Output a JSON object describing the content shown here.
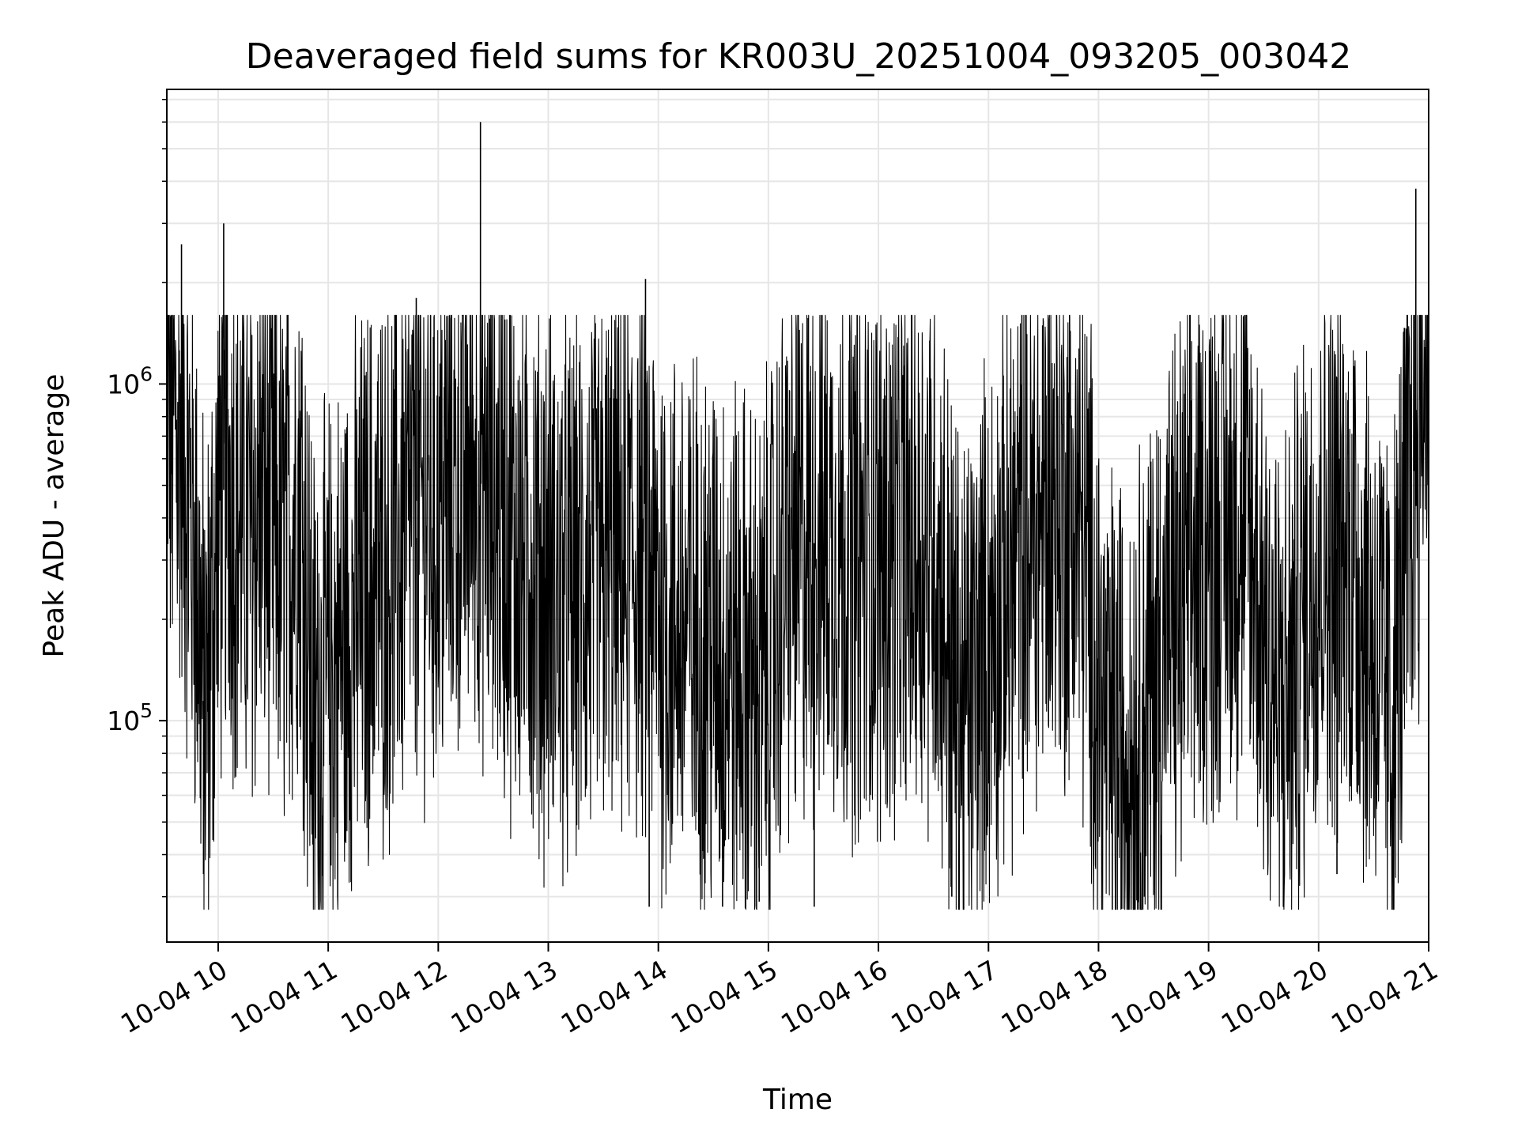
{
  "chart_data": {
    "type": "line",
    "title": "Deaveraged field sums for KR003U_20251004_093205_003042",
    "xlabel": "Time",
    "ylabel": "Peak ADU - average",
    "x_axis": {
      "type": "time",
      "range": [
        "2025-10-04 09:32",
        "2025-10-04 21:00"
      ],
      "ticks": [
        "10-04 10",
        "10-04 11",
        "10-04 12",
        "10-04 13",
        "10-04 14",
        "10-04 15",
        "10-04 16",
        "10-04 17",
        "10-04 18",
        "10-04 19",
        "10-04 20",
        "10-04 21"
      ]
    },
    "y_axis": {
      "scale": "log",
      "range": [
        22000,
        7500000
      ],
      "ticks": [
        {
          "base": "10",
          "exp": "5"
        },
        {
          "base": "10",
          "exp": "6"
        }
      ]
    },
    "grid": true,
    "legend": "none",
    "line_color": "#000000",
    "series": [
      {
        "time": [
          "2025-10-04 09:32",
          "2025-10-04 09:40",
          "2025-10-04 09:48",
          "2025-10-04 09:53",
          "2025-10-04 10:00",
          "2025-10-04 10:05",
          "2025-10-04 10:15",
          "2025-10-04 10:25",
          "2025-10-04 10:35",
          "2025-10-04 10:45",
          "2025-10-04 10:52",
          "2025-10-04 11:05",
          "2025-10-04 11:20",
          "2025-10-04 11:35",
          "2025-10-04 11:48",
          "2025-10-04 12:00",
          "2025-10-04 12:20",
          "2025-10-04 12:40",
          "2025-10-04 12:55",
          "2025-10-04 13:10",
          "2025-10-04 13:30",
          "2025-10-04 13:50",
          "2025-10-04 14:05",
          "2025-10-04 14:25",
          "2025-10-04 14:45",
          "2025-10-04 14:55",
          "2025-10-04 15:10",
          "2025-10-04 15:30",
          "2025-10-04 15:50",
          "2025-10-04 16:10",
          "2025-10-04 16:30",
          "2025-10-04 16:45",
          "2025-10-04 16:55",
          "2025-10-04 17:15",
          "2025-10-04 17:35",
          "2025-10-04 17:50",
          "2025-10-04 18:05",
          "2025-10-04 18:20",
          "2025-10-04 18:40",
          "2025-10-04 19:00",
          "2025-10-04 19:20",
          "2025-10-04 19:40",
          "2025-10-04 20:00",
          "2025-10-04 20:20",
          "2025-10-04 20:40",
          "2025-10-04 20:50",
          "2025-10-04 21:00"
        ],
        "peak_adu": [
          800000,
          700000,
          300000,
          90000,
          400000,
          550000,
          350000,
          450000,
          300000,
          500000,
          100000,
          150000,
          250000,
          300000,
          450000,
          400000,
          600000,
          350000,
          280000,
          220000,
          280000,
          300000,
          200000,
          180000,
          150000,
          120000,
          300000,
          350000,
          300000,
          320000,
          350000,
          100000,
          150000,
          300000,
          450000,
          400000,
          80000,
          90000,
          200000,
          350000,
          400000,
          100000,
          350000,
          300000,
          100000,
          500000,
          1400000
        ]
      }
    ],
    "spikes": [
      {
        "time": "2025-10-04 09:40",
        "value": 2600000
      },
      {
        "time": "2025-10-04 10:03",
        "value": 3000000
      },
      {
        "time": "2025-10-04 11:48",
        "value": 1800000
      },
      {
        "time": "2025-10-04 12:23",
        "value": 6000000
      },
      {
        "time": "2025-10-04 13:53",
        "value": 2050000
      },
      {
        "time": "2025-10-04 20:53",
        "value": 3800000
      }
    ],
    "dips": [
      {
        "time": "2025-10-04 09:52",
        "value": 35000
      },
      {
        "time": "2025-10-04 13:55",
        "value": 28000
      },
      {
        "time": "2025-10-04 14:35",
        "value": 28000
      },
      {
        "time": "2025-10-04 14:55",
        "value": 29000
      },
      {
        "time": "2025-10-04 15:25",
        "value": 28000
      },
      {
        "time": "2025-10-04 16:40",
        "value": 30000
      },
      {
        "time": "2025-10-04 18:25",
        "value": 30000
      },
      {
        "time": "2025-10-04 20:10",
        "value": 35000
      }
    ]
  }
}
